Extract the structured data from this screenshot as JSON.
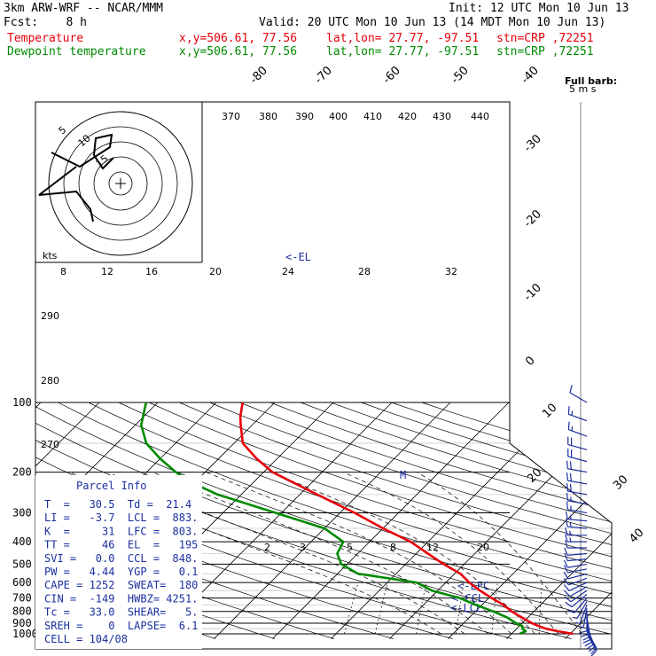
{
  "header": {
    "model": "3km ARW-WRF -- NCAR/MMM",
    "init": "Init: 12 UTC Mon 10 Jun 13",
    "fcst": "Fcst:    8 h",
    "valid": "Valid: 20 UTC Mon 10 Jun 13 (14 MDT Mon 10 Jun 13)",
    "temp_label": "Temperature",
    "dew_label": "Dewpoint temperature",
    "loc_xy": "x,y=506.61, 77.56",
    "loc_latlon": "lat,lon= 27.77, -97.51",
    "loc_stn": "stn=CRP ,72251",
    "barb_key_1": "Full barb:",
    "barb_key_2": "5 m s"
  },
  "parcel_info": {
    "title": "Parcel  Info",
    "rows": [
      "T  =   30.5  Td =  21.4",
      "LI =   -3.7  LCL =  883.",
      "K  =     31  LFC =  803.",
      "TT =     46  EL  =   195",
      "SVI =   0.0  CCL =  848.",
      "PW =   4.44  YGP =   0.1",
      "CAPE = 1252  SWEAT=  180",
      "CIN =  -149  HWBZ= 4251.",
      "Tc =   33.0  SHEAR=   5.",
      "SREH =    0  LAPSE=  6.1",
      "CELL = 104/08"
    ]
  },
  "markers": {
    "el": "<-EL",
    "lfc": "<-LFC",
    "ccl": "<-CCL",
    "lcl": "<-LCL",
    "hodo_units": "kts",
    "max_wind_mark": "M"
  },
  "colors": {
    "temperature": "#e8000a",
    "dewpoint": "#008a00",
    "wind": "#1a2fa0",
    "grid": "#000000"
  },
  "chart_data": {
    "type": "line",
    "title": "",
    "xlabel": "",
    "ylabel": "",
    "pressure_levels_hPa": [
      "100",
      "200",
      "290",
      "300",
      "380",
      "400",
      "500",
      "600",
      "700",
      "800",
      "900",
      "1000"
    ],
    "isotherm_labels_C": [
      "-80",
      "-70",
      "-60",
      "-50",
      "-40",
      "-30",
      "-20",
      "-10",
      "0",
      "10",
      "20",
      "30",
      "40"
    ],
    "theta_labels_K": [
      "370",
      "380",
      "390",
      "400",
      "410",
      "420",
      "430",
      "440",
      "290",
      "280",
      "270"
    ],
    "hodograph_speed_labels_kts": [
      "8",
      "12",
      "16",
      "20",
      "24",
      "28",
      "32"
    ],
    "hodograph_ring_labels": [
      "5",
      "10",
      "15"
    ],
    "mixing_ratio_labels": [
      "2",
      "3",
      "5",
      "8",
      "12",
      "20"
    ],
    "series": [
      {
        "name": "Temperature",
        "units": "degC",
        "points": [
          [
            1000,
            30.5
          ],
          [
            975,
            27.5
          ],
          [
            950,
            25.0
          ],
          [
            925,
            23.3
          ],
          [
            900,
            21.7
          ],
          [
            850,
            19.0
          ],
          [
            800,
            16.2
          ],
          [
            750,
            13.7
          ],
          [
            700,
            10.5
          ],
          [
            650,
            7.2
          ],
          [
            600,
            4.0
          ],
          [
            550,
            1.0
          ],
          [
            500,
            -3.5
          ],
          [
            450,
            -8.0
          ],
          [
            400,
            -13.0
          ],
          [
            350,
            -20.0
          ],
          [
            300,
            -27.5
          ],
          [
            250,
            -37.0
          ],
          [
            200,
            -48.5
          ],
          [
            175,
            -53.5
          ],
          [
            150,
            -58.5
          ],
          [
            125,
            -62.0
          ],
          [
            115,
            -63.5
          ],
          [
            100,
            -65.5
          ]
        ]
      },
      {
        "name": "Dewpoint temperature",
        "units": "degC",
        "points": [
          [
            1000,
            21.4
          ],
          [
            975,
            22.0
          ],
          [
            950,
            21.0
          ],
          [
            925,
            20.5
          ],
          [
            900,
            19.0
          ],
          [
            850,
            16.5
          ],
          [
            800,
            13.0
          ],
          [
            750,
            9.0
          ],
          [
            700,
            5.0
          ],
          [
            650,
            -1.0
          ],
          [
            600,
            -5.0
          ],
          [
            550,
            -16.5
          ],
          [
            500,
            -21.0
          ],
          [
            450,
            -23.5
          ],
          [
            400,
            -24.5
          ],
          [
            350,
            -30.0
          ],
          [
            300,
            -41.0
          ],
          [
            250,
            -54.0
          ],
          [
            220,
            -61.0
          ],
          [
            200,
            -65.0
          ],
          [
            175,
            -70.0
          ],
          [
            150,
            -75.0
          ],
          [
            125,
            -79.0
          ],
          [
            100,
            -82.0
          ]
        ]
      }
    ],
    "hodograph_trace_kts": [
      [
        -18,
        -2
      ],
      [
        -10,
        -2
      ],
      [
        -6,
        -5
      ],
      [
        -4,
        -10
      ],
      [
        -10,
        -2
      ],
      [
        -20,
        4
      ],
      [
        -22,
        8
      ]
    ],
    "wind_barbs": [
      {
        "p": 1000,
        "spd_kts": 10,
        "dir_deg": 150
      },
      {
        "p": 975,
        "spd_kts": 12,
        "dir_deg": 150
      },
      {
        "p": 950,
        "spd_kts": 12,
        "dir_deg": 155
      },
      {
        "p": 925,
        "spd_kts": 12,
        "dir_deg": 160
      },
      {
        "p": 900,
        "spd_kts": 10,
        "dir_deg": 165
      },
      {
        "p": 875,
        "spd_kts": 10,
        "dir_deg": 170
      },
      {
        "p": 850,
        "spd_kts": 10,
        "dir_deg": 170
      },
      {
        "p": 825,
        "spd_kts": 8,
        "dir_deg": 175
      },
      {
        "p": 800,
        "spd_kts": 8,
        "dir_deg": 180
      },
      {
        "p": 775,
        "spd_kts": 6,
        "dir_deg": 190
      },
      {
        "p": 750,
        "spd_kts": 6,
        "dir_deg": 200
      },
      {
        "p": 725,
        "spd_kts": 6,
        "dir_deg": 210
      },
      {
        "p": 700,
        "spd_kts": 8,
        "dir_deg": 220
      },
      {
        "p": 675,
        "spd_kts": 8,
        "dir_deg": 230
      },
      {
        "p": 650,
        "spd_kts": 8,
        "dir_deg": 235
      },
      {
        "p": 625,
        "spd_kts": 10,
        "dir_deg": 240
      },
      {
        "p": 600,
        "spd_kts": 10,
        "dir_deg": 245
      },
      {
        "p": 575,
        "spd_kts": 10,
        "dir_deg": 250
      },
      {
        "p": 550,
        "spd_kts": 10,
        "dir_deg": 255
      },
      {
        "p": 525,
        "spd_kts": 10,
        "dir_deg": 260
      },
      {
        "p": 500,
        "spd_kts": 12,
        "dir_deg": 260
      },
      {
        "p": 475,
        "spd_kts": 12,
        "dir_deg": 265
      },
      {
        "p": 450,
        "spd_kts": 12,
        "dir_deg": 265
      },
      {
        "p": 425,
        "spd_kts": 12,
        "dir_deg": 270
      },
      {
        "p": 400,
        "spd_kts": 15,
        "dir_deg": 270
      },
      {
        "p": 375,
        "spd_kts": 15,
        "dir_deg": 270
      },
      {
        "p": 350,
        "spd_kts": 15,
        "dir_deg": 275
      },
      {
        "p": 325,
        "spd_kts": 15,
        "dir_deg": 275
      },
      {
        "p": 300,
        "spd_kts": 15,
        "dir_deg": 280
      },
      {
        "p": 275,
        "spd_kts": 15,
        "dir_deg": 280
      },
      {
        "p": 250,
        "spd_kts": 20,
        "dir_deg": 280
      },
      {
        "p": 225,
        "spd_kts": 20,
        "dir_deg": 280
      },
      {
        "p": 200,
        "spd_kts": 20,
        "dir_deg": 280
      },
      {
        "p": 180,
        "spd_kts": 20,
        "dir_deg": 285
      },
      {
        "p": 160,
        "spd_kts": 20,
        "dir_deg": 285
      },
      {
        "p": 140,
        "spd_kts": 15,
        "dir_deg": 290
      },
      {
        "p": 120,
        "spd_kts": 15,
        "dir_deg": 290
      },
      {
        "p": 100,
        "spd_kts": 10,
        "dir_deg": 300
      }
    ]
  }
}
